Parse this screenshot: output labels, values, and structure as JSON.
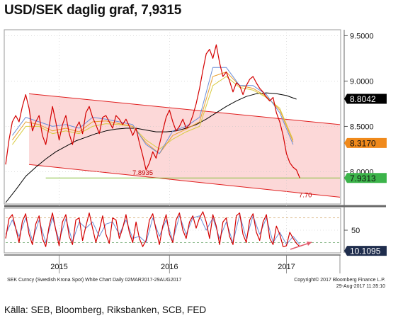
{
  "title": "USD/SEK daglig graf, 7,9315",
  "source": "Källa: SEB, Bloomberg, Riksbanken, SCB, FED",
  "footer": {
    "left": "SEK Curncy (Swedish Krona Spot) White Chart  Daily 02MAR2017-29AUG2017",
    "right1": "Copyright© 2017 Bloomberg Finance L.P.",
    "right2": "29-Aug-2017 11:35:10"
  },
  "colors": {
    "price": "#d40000",
    "ma_blue": "#6c8ed8",
    "ma_orange": "#e8a030",
    "ma_yellow": "#d8cc40",
    "ma_long": "#000000",
    "channel_fill": "#fcd8d8",
    "channel_line": "#e02020",
    "support": "#88c040",
    "tag_black": "#000000",
    "tag_orange": "#f08a1c",
    "tag_green": "#3cb44a",
    "tag_navy": "#1f2d4d"
  },
  "chart_data": [
    {
      "type": "line",
      "panel": "price",
      "title": "USD/SEK daglig graf, 7,9315",
      "x_ticks": [
        "2015",
        "2016",
        "2017"
      ],
      "y_ticks": [
        9.5,
        9.0,
        8.5,
        8.0
      ],
      "y_tick_labels": [
        "9.5000",
        "9.0000",
        "8.5000",
        "8.0000"
      ],
      "ylim": [
        7.66,
        9.55
      ],
      "x_range": [
        0,
        100
      ],
      "x_tick_positions": [
        16,
        49,
        84
      ],
      "value_tags": [
        {
          "label": "8.8042",
          "value": 8.8042,
          "color": "black"
        },
        {
          "label": "8.3170",
          "value": 8.317,
          "color": "orange"
        },
        {
          "label": "7.9313",
          "value": 7.9313,
          "color": "green"
        }
      ],
      "channel": {
        "upper": [
          [
            7,
            8.86
          ],
          [
            100,
            8.52
          ]
        ],
        "lower": [
          [
            7,
            8.08
          ],
          [
            100,
            7.72
          ]
        ],
        "label_low": "7.8935",
        "label_low_value": 7.8935,
        "label_low_x": 41,
        "label_channel": "7.70",
        "label_channel_x": 85
      },
      "support_level": 7.9313,
      "series": [
        {
          "key": "price",
          "x": [
            0,
            1,
            2,
            3,
            4,
            5,
            6,
            7,
            8,
            9,
            10,
            11,
            12,
            13,
            14,
            15,
            16,
            17,
            18,
            19,
            20,
            21,
            22,
            23,
            24,
            25,
            26,
            27,
            28,
            29,
            30,
            31,
            32,
            33,
            34,
            35,
            36,
            37,
            38,
            39,
            40,
            41,
            42,
            43,
            44,
            45,
            46,
            47,
            48,
            49,
            50,
            51,
            52,
            53,
            54,
            55,
            56,
            57,
            58,
            59,
            60,
            61,
            62,
            63,
            64,
            65,
            66,
            67,
            68,
            69,
            70,
            71,
            72,
            73,
            74,
            75,
            76,
            77,
            78,
            79,
            80,
            81,
            82,
            83,
            84,
            85,
            86,
            87,
            88
          ],
          "y": [
            8.08,
            8.35,
            8.55,
            8.62,
            8.55,
            8.72,
            8.85,
            8.7,
            8.45,
            8.55,
            8.62,
            8.4,
            8.3,
            8.5,
            8.72,
            8.55,
            8.35,
            8.52,
            8.62,
            8.42,
            8.3,
            8.48,
            8.55,
            8.42,
            8.65,
            8.72,
            8.6,
            8.52,
            8.42,
            8.6,
            8.62,
            8.55,
            8.48,
            8.62,
            8.58,
            8.52,
            8.58,
            8.5,
            8.4,
            8.48,
            8.32,
            8.18,
            8.02,
            8.1,
            8.22,
            8.15,
            8.3,
            8.45,
            8.6,
            8.68,
            8.55,
            8.45,
            8.5,
            8.58,
            8.48,
            8.52,
            8.62,
            8.75,
            8.92,
            9.12,
            9.3,
            9.35,
            9.25,
            9.4,
            9.2,
            9.05,
            9.1,
            9.0,
            8.88,
            8.98,
            8.95,
            8.85,
            8.95,
            9.02,
            9.05,
            8.98,
            8.92,
            8.88,
            8.82,
            8.78,
            8.82,
            8.65,
            8.55,
            8.4,
            8.2,
            8.1,
            8.05,
            8.02,
            7.93
          ]
        },
        {
          "key": "ma_blue",
          "x": [
            2,
            6,
            10,
            14,
            18,
            22,
            26,
            30,
            34,
            38,
            42,
            46,
            50,
            54,
            58,
            62,
            66,
            70,
            74,
            78,
            82,
            86
          ],
          "y": [
            8.4,
            8.6,
            8.55,
            8.5,
            8.52,
            8.48,
            8.6,
            8.58,
            8.55,
            8.52,
            8.3,
            8.2,
            8.45,
            8.5,
            8.6,
            9.15,
            9.15,
            8.95,
            8.95,
            8.85,
            8.65,
            8.3
          ]
        },
        {
          "key": "ma_orange",
          "x": [
            2,
            6,
            10,
            14,
            18,
            22,
            26,
            30,
            34,
            38,
            42,
            46,
            50,
            54,
            58,
            62,
            66,
            70,
            74,
            78,
            82,
            86
          ],
          "y": [
            8.35,
            8.55,
            8.52,
            8.45,
            8.48,
            8.44,
            8.55,
            8.56,
            8.53,
            8.5,
            8.32,
            8.2,
            8.4,
            8.47,
            8.55,
            9.05,
            9.1,
            8.95,
            8.92,
            8.83,
            8.68,
            8.33
          ]
        },
        {
          "key": "ma_yellow",
          "x": [
            2,
            6,
            10,
            14,
            18,
            22,
            26,
            30,
            34,
            38,
            42,
            46,
            50,
            54,
            58,
            62,
            66,
            70,
            74,
            78,
            82,
            86
          ],
          "y": [
            8.3,
            8.5,
            8.5,
            8.42,
            8.45,
            8.42,
            8.5,
            8.53,
            8.52,
            8.5,
            8.35,
            8.25,
            8.36,
            8.44,
            8.5,
            8.95,
            9.05,
            8.93,
            8.9,
            8.82,
            8.7,
            8.35
          ]
        },
        {
          "key": "ma_long",
          "x": [
            0,
            3,
            6,
            9,
            12,
            15,
            18,
            21,
            24,
            27,
            30,
            33,
            36,
            39,
            42,
            45,
            48,
            51,
            54,
            57,
            60,
            63,
            66,
            69,
            72,
            75,
            78,
            81,
            84,
            87
          ],
          "y": [
            7.66,
            7.8,
            7.95,
            8.05,
            8.14,
            8.22,
            8.28,
            8.34,
            8.38,
            8.42,
            8.45,
            8.47,
            8.48,
            8.48,
            8.46,
            8.44,
            8.44,
            8.45,
            8.48,
            8.52,
            8.58,
            8.65,
            8.72,
            8.78,
            8.83,
            8.86,
            8.87,
            8.86,
            8.84,
            8.8
          ]
        }
      ]
    },
    {
      "type": "line",
      "panel": "oscillator",
      "y_ticks": [
        50
      ],
      "y_tick_labels": [
        "50"
      ],
      "ylim": [
        0,
        100
      ],
      "value_tag": {
        "label": "10.1095",
        "value": 10.1095,
        "color": "navy"
      },
      "levels": [
        80,
        20
      ],
      "series": [
        {
          "key": "price",
          "x": [
            0,
            1,
            2,
            3,
            4,
            5,
            6,
            7,
            8,
            9,
            10,
            11,
            12,
            13,
            14,
            15,
            16,
            17,
            18,
            19,
            20,
            21,
            22,
            23,
            24,
            25,
            26,
            27,
            28,
            29,
            30,
            31,
            32,
            33,
            34,
            35,
            36,
            37,
            38,
            39,
            40,
            41,
            42,
            43,
            44,
            45,
            46,
            47,
            48,
            49,
            50,
            51,
            52,
            53,
            54,
            55,
            56,
            57,
            58,
            59,
            60,
            61,
            62,
            63,
            64,
            65,
            66,
            67,
            68,
            69,
            70,
            71,
            72,
            73,
            74,
            75,
            76,
            77,
            78,
            79,
            80,
            81,
            82,
            83,
            84,
            85,
            86,
            87,
            88
          ],
          "y": [
            30,
            78,
            88,
            55,
            20,
            72,
            90,
            40,
            15,
            65,
            85,
            30,
            10,
            60,
            92,
            50,
            12,
            70,
            88,
            35,
            15,
            75,
            80,
            25,
            60,
            92,
            55,
            20,
            50,
            85,
            40,
            18,
            80,
            75,
            30,
            55,
            88,
            45,
            20,
            70,
            30,
            10,
            25,
            75,
            90,
            50,
            15,
            60,
            88,
            40,
            20,
            75,
            92,
            50,
            30,
            70,
            85,
            55,
            80,
            95,
            70,
            30,
            88,
            60,
            15,
            70,
            80,
            35,
            15,
            85,
            92,
            40,
            20,
            75,
            90,
            45,
            25,
            70,
            88,
            30,
            15,
            60,
            40,
            10,
            12,
            45,
            30,
            18,
            10
          ]
        },
        {
          "key": "ma_blue",
          "x": [
            0,
            2,
            4,
            6,
            8,
            10,
            12,
            14,
            16,
            18,
            20,
            22,
            24,
            26,
            28,
            30,
            32,
            34,
            36,
            38,
            40,
            42,
            44,
            46,
            48,
            50,
            52,
            54,
            56,
            58,
            60,
            62,
            64,
            66,
            68,
            70,
            72,
            74,
            76,
            78,
            80,
            82,
            84,
            86,
            88
          ],
          "y": [
            40,
            75,
            35,
            80,
            25,
            75,
            20,
            80,
            25,
            78,
            22,
            70,
            55,
            70,
            35,
            65,
            70,
            40,
            75,
            30,
            35,
            20,
            80,
            35,
            75,
            25,
            85,
            40,
            80,
            85,
            50,
            80,
            30,
            70,
            20,
            88,
            30,
            85,
            40,
            80,
            20,
            45,
            15,
            35,
            15
          ]
        }
      ]
    }
  ]
}
